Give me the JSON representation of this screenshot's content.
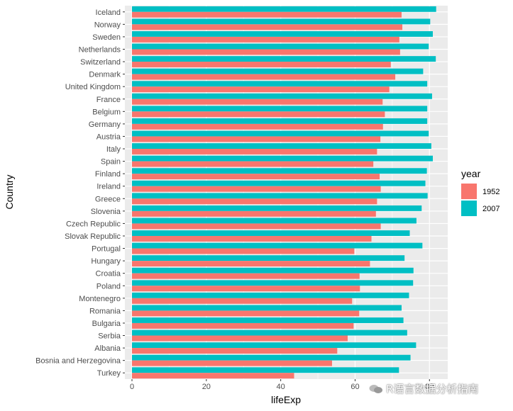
{
  "chart_data": {
    "type": "bar",
    "orientation": "horizontal",
    "grouped": true,
    "xlabel": "lifeExp",
    "ylabel": "Country",
    "xlim": [
      0,
      83
    ],
    "xticks": [
      0,
      20,
      40,
      60,
      80
    ],
    "grid": true,
    "legend": {
      "title": "year",
      "position": "right"
    },
    "categories": [
      "Iceland",
      "Norway",
      "Sweden",
      "Netherlands",
      "Switzerland",
      "Denmark",
      "United Kingdom",
      "France",
      "Belgium",
      "Germany",
      "Austria",
      "Italy",
      "Spain",
      "Finland",
      "Ireland",
      "Greece",
      "Slovenia",
      "Czech Republic",
      "Slovak Republic",
      "Portugal",
      "Hungary",
      "Croatia",
      "Poland",
      "Montenegro",
      "Romania",
      "Bulgaria",
      "Serbia",
      "Albania",
      "Bosnia and Herzegovina",
      "Turkey"
    ],
    "series": [
      {
        "name": "1952",
        "color": "#F8766D",
        "values": [
          72.5,
          72.7,
          71.9,
          72.1,
          69.6,
          70.8,
          69.2,
          67.4,
          68.0,
          67.5,
          66.8,
          65.9,
          64.9,
          66.6,
          66.9,
          65.9,
          65.6,
          66.9,
          64.4,
          59.8,
          64.0,
          61.2,
          61.3,
          59.2,
          61.1,
          59.6,
          58.0,
          55.2,
          53.8,
          43.6
        ]
      },
      {
        "name": "2007",
        "color": "#00BFC4",
        "values": [
          81.8,
          80.2,
          80.9,
          79.8,
          81.7,
          78.3,
          79.4,
          80.7,
          79.4,
          79.4,
          79.8,
          80.5,
          80.9,
          79.3,
          78.9,
          79.5,
          77.9,
          76.5,
          74.7,
          78.1,
          73.3,
          75.7,
          75.6,
          74.5,
          72.5,
          73.0,
          74.0,
          76.4,
          74.9,
          71.8
        ]
      }
    ]
  },
  "watermark": {
    "text": "R语言数据分析指南",
    "icon": "wechat-icon"
  }
}
